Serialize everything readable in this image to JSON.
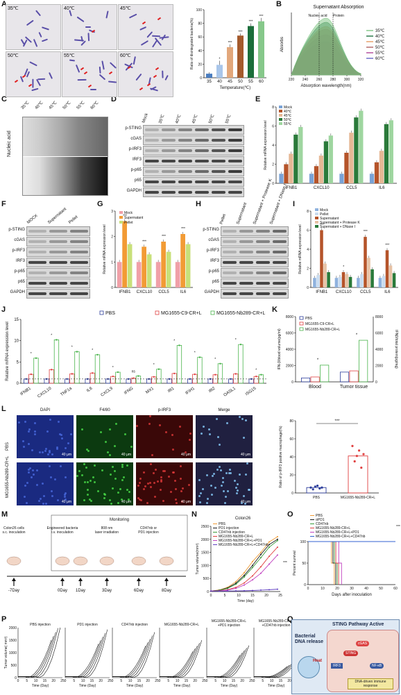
{
  "labels": {
    "A": "A",
    "B": "B",
    "C": "C",
    "D": "D",
    "E": "E",
    "F": "F",
    "G": "G",
    "H": "H",
    "I": "I",
    "J": "J",
    "K": "K",
    "L": "L",
    "M": "M",
    "N": "N",
    "O": "O",
    "P": "P",
    "Q": "Q"
  },
  "panelA": {
    "images": [
      "35℃",
      "40℃",
      "45℃",
      "50℃",
      "55℃",
      "60℃"
    ],
    "chart": {
      "type": "bar",
      "categories": [
        "35",
        "40",
        "45",
        "50",
        "55",
        "60"
      ],
      "values": [
        6,
        19,
        45,
        62,
        76,
        83
      ],
      "errors": [
        2,
        6,
        4,
        3,
        4,
        5
      ],
      "sig": [
        "",
        "*",
        "***",
        "***",
        "***",
        "***"
      ],
      "colors": [
        "#4a7dc0",
        "#a9c6ea",
        "#e2a77b",
        "#a45a2c",
        "#1b6e3a",
        "#86c88a"
      ],
      "xlabel": "Temperature(℃)",
      "ylabel": "Ratio of disintegrated bacteria(%)",
      "ylim": [
        0,
        100
      ],
      "yticks": [
        "0",
        "20",
        "40",
        "60",
        "80",
        "100"
      ]
    }
  },
  "panelB": {
    "title": "Supernatant Absorption",
    "ylabel": "Absorbs",
    "xlabel": "Absorption wavelength(nm)",
    "xticks": [
      "220",
      "240",
      "260",
      "280",
      "300",
      "320"
    ],
    "annot_nucleic": "Nucleic acid",
    "annot_protein": "Protein",
    "legend": [
      "35℃",
      "40℃",
      "45℃",
      "50℃",
      "55℃",
      "60℃"
    ],
    "colors": [
      "#86c88a",
      "#2a7a4a",
      "#e8a36c",
      "#b56b6b",
      "#b4509f",
      "#6f6fc8"
    ]
  },
  "panelC": {
    "lanes": [
      "35℃",
      "40℃",
      "45℃",
      "50℃",
      "55℃",
      "60℃"
    ],
    "ylabel": "Nucleic acid"
  },
  "panelD": {
    "lanes": [
      "Mock",
      "35℃",
      "40℃",
      "45℃",
      "50℃",
      "55℃"
    ],
    "rows": [
      "p-STING",
      "cGAS",
      "p-IRF3",
      "IRF3",
      "p-p65",
      "p65",
      "GAPDH"
    ]
  },
  "panelE": {
    "type": "bar",
    "ylabel": "Relative mRNA expression level",
    "categories": [
      "IFNB1",
      "CXCL10",
      "CCL5",
      "IL6"
    ],
    "legend": [
      "Mock",
      "40℃",
      "45℃",
      "50℃",
      "55℃"
    ],
    "colors": [
      "#7aa3d6",
      "#b5542a",
      "#e6b896",
      "#2a7a3a",
      "#9fd6a0"
    ],
    "series": [
      [
        1,
        1,
        1,
        1
      ],
      [
        2,
        1.8,
        3.2,
        2.2
      ],
      [
        3.1,
        2.9,
        5.3,
        3.4
      ],
      [
        5.1,
        4.4,
        6.9,
        6.2
      ],
      [
        5.9,
        5,
        7.6,
        6.6
      ]
    ],
    "ylim": [
      0,
      8
    ],
    "yticks": [
      "0",
      "2",
      "4",
      "6",
      "8"
    ]
  },
  "panelF": {
    "lanes": [
      "MOCK",
      "Supernatant",
      "Pellet"
    ],
    "rows": [
      "p-STING",
      "cGAS",
      "p-IRF3",
      "IRF3",
      "p-p65",
      "p65",
      "GAPDH"
    ]
  },
  "panelG": {
    "type": "bar",
    "ylabel": "Relative mRNA expression level",
    "categories": [
      "IFNB1",
      "CXCL10",
      "CCL5",
      "IL6"
    ],
    "legend": [
      "Mock",
      "Supernatant",
      "Pellet"
    ],
    "colors": [
      "#f0a0a8",
      "#f29b35",
      "#c8e07a"
    ],
    "series": [
      [
        1,
        1,
        1,
        1
      ],
      [
        2.6,
        1.6,
        1.8,
        2.1
      ],
      [
        1.7,
        1.3,
        1.4,
        1.7
      ]
    ],
    "ylim": [
      0,
      3
    ],
    "yticks": [
      "0",
      "1",
      "2",
      "3"
    ],
    "sig": [
      "***",
      "***",
      "***",
      "***"
    ]
  },
  "panelH": {
    "lanes": [
      "Pellet",
      "Supernatant",
      "Supernatant + Protease K",
      "Supernatant + DNase I"
    ],
    "rows": [
      "p-STING",
      "cGAS",
      "p-IRF3",
      "IRF3",
      "p-p65",
      "p65",
      "GAPDH"
    ]
  },
  "panelI": {
    "type": "bar",
    "ylabel": "Relative mRNA expression level",
    "categories": [
      "IFNB1",
      "CXCL10",
      "CCL5",
      "IL6"
    ],
    "legend": [
      "Mock",
      "Pellet",
      "Supernatant",
      "Supernatant + Protease K",
      "Supernatant + DNase I"
    ],
    "colors": [
      "#8fb2de",
      "#c9dcf0",
      "#b5542a",
      "#e7c3a6",
      "#2a7a3a"
    ],
    "series": [
      [
        1,
        1,
        1,
        1
      ],
      [
        1.3,
        1.1,
        1.4,
        1.2
      ],
      [
        6,
        1.6,
        5.3,
        3.9
      ],
      [
        2.5,
        1.4,
        3.1,
        2.3
      ],
      [
        1.6,
        1.1,
        1.9,
        1.5
      ]
    ],
    "ylim": [
      0,
      8
    ],
    "yticks": [
      "0",
      "2",
      "4",
      "6",
      "8"
    ],
    "sig": [
      "***",
      "*",
      "***",
      "***"
    ]
  },
  "panelJ": {
    "type": "bar",
    "ylabel": "Relative mRNA expression level",
    "legend": [
      "PBS",
      "MG1655-C9-CR+L",
      "MG1655-Nb289-CR+L"
    ],
    "colors": [
      "#2d3e9c",
      "#e04040",
      "#48b34a"
    ],
    "categories": [
      "IFNB1",
      "CXCL10",
      "TNF1a",
      "IL6",
      "CXCL9",
      "IFNG",
      "MX1",
      "Ifit1",
      "IFIH1",
      "Ifit2",
      "OASL1",
      "ISG15"
    ],
    "series": [
      [
        1,
        1,
        1,
        1,
        1,
        1,
        1,
        1,
        1,
        1,
        1,
        1
      ],
      [
        2.1,
        3.2,
        2.2,
        2.4,
        1.6,
        1.2,
        1.5,
        2.3,
        2.1,
        2,
        2.2,
        1.6
      ],
      [
        5.9,
        10.2,
        7.4,
        6.7,
        2.6,
        1.7,
        3.3,
        8.9,
        6.1,
        4.6,
        9.1,
        2
      ]
    ],
    "sig": [
      "*",
      "*",
      "*",
      "*",
      "*",
      "ns",
      "*",
      "*",
      "*",
      "*",
      "*",
      "*"
    ],
    "ylim": [
      0,
      15
    ],
    "yticks": [
      "0",
      "5",
      "10",
      "15"
    ]
  },
  "panelK": {
    "legend": [
      "PBS",
      "MG1655-C9-CR+L",
      "MG1655-Nb289-CR+L"
    ],
    "colors": [
      "#2d3e9c",
      "#e04040",
      "#48b34a"
    ],
    "ylabel_left": "IFN-β/blood volume(pg/ml)",
    "ylabel_right": "IFNβ/total protein(pg/mg)",
    "categories": [
      "Blood",
      "Tumor tissue"
    ],
    "series": [
      [
        480,
        1200
      ],
      [
        600,
        1350
      ],
      [
        2050,
        5100
      ]
    ],
    "ylim": [
      0,
      8000
    ],
    "yticks": [
      "0",
      "2000",
      "4000",
      "6000",
      "8000"
    ],
    "sig": [
      "*",
      "*"
    ]
  },
  "panelL": {
    "columns": [
      "DAPI",
      "F4/80",
      "p-IRF3",
      "Merge"
    ],
    "rows": [
      "PBS",
      "MG1655-Nb289-CR+L"
    ],
    "scale": "40 μm",
    "chart": {
      "type": "scatter",
      "categories": [
        "PBS",
        "MG1655-Nb289-CR+L"
      ],
      "values": [
        [
          6,
          4,
          7,
          8,
          5,
          6
        ],
        [
          52,
          35,
          41,
          47,
          28,
          43
        ]
      ],
      "means": [
        6,
        41
      ],
      "ylabel": "Ratio of p-IRF3 positive macrophage(%)",
      "ylim": [
        0,
        80
      ],
      "yticks": [
        "0",
        "20",
        "40",
        "60",
        "80"
      ],
      "sig": "***"
    }
  },
  "panelM": {
    "steps": [
      "Colon26 cells s.c. inoculation",
      "Engineered bacteria i.v. inoculation",
      "808 nm laser irradiation",
      "CD47nb or PD1 injection"
    ],
    "monitoring": "Monitoring",
    "days": [
      "-7Day",
      "0Day",
      "1Day",
      "3Day",
      "6Day",
      "8Day"
    ]
  },
  "panelN": {
    "title": "Colon26",
    "type": "line",
    "legend": [
      "PBS",
      "PD1 injection",
      "CD47nb injection",
      "MG1655-Nb289-CR+L",
      "MG1655-Nb289-CR+L+PD1",
      "MG1655-Nb289-CR+L+CD47nb"
    ],
    "colors": [
      "#f29b35",
      "#1a1a1a",
      "#3a9a3a",
      "#e04040",
      "#c040c0",
      "#6040c0"
    ],
    "x": [
      0,
      3,
      6,
      9,
      12,
      15,
      18,
      21,
      24
    ],
    "series": [
      [
        20,
        60,
        160,
        380,
        720,
        1150,
        1500,
        1900,
        2100
      ],
      [
        20,
        50,
        140,
        320,
        620,
        1000,
        1420,
        1800,
        2000
      ],
      [
        20,
        45,
        120,
        280,
        560,
        920,
        1300,
        1700,
        1950
      ],
      [
        20,
        30,
        70,
        160,
        330,
        600,
        950,
        1350,
        1700
      ],
      [
        20,
        25,
        55,
        120,
        250,
        450,
        700,
        1050,
        1400
      ],
      [
        20,
        18,
        20,
        25,
        30,
        40,
        55,
        70,
        90
      ]
    ],
    "ylabel": "Tumor volume(mm³)",
    "xlabel": "Time (day)",
    "yticks": [
      "0",
      "500",
      "1000",
      "1500",
      "2000",
      "2500"
    ],
    "xticks": [
      "0",
      "5",
      "10",
      "15",
      "20",
      "25"
    ],
    "sig": "***"
  },
  "panelO": {
    "type": "line",
    "legend": [
      "PBS",
      "αPD1",
      "CD47nb",
      "MG1655-Nb289-CR+L",
      "MG1655-Nb289-CR+L+PD1",
      "MG1655-Nb289-CR+L+CD47nb"
    ],
    "colors": [
      "#f29b35",
      "#1a1a1a",
      "#3a9a3a",
      "#e04040",
      "#c040c0",
      "#3060d0"
    ],
    "ylabel": "Percent survival",
    "xlabel": "Days after inoculation",
    "xticks": [
      "0",
      "10",
      "20",
      "30",
      "40",
      "50",
      "60"
    ],
    "yticks": [
      "0",
      "50",
      "100"
    ],
    "sig": "***"
  },
  "panelP": {
    "titles": [
      "PBS injection",
      "PD1 injection",
      "CD47nb injection",
      "MG1655-Nb289-CR+L",
      "MG1655-Nb289-CR+L +PD1 injection",
      "MG1655-Nb289-CR+L +CD47nb injection"
    ],
    "ylabel": "Tumor volume( mm³)",
    "xlabel": "Time (Day)",
    "xticks": [
      "0",
      "5",
      "10",
      "15",
      "20",
      "25"
    ],
    "yticks": [
      "0",
      "500",
      "1000",
      "1500",
      "2000"
    ]
  },
  "panelQ": {
    "title": "STING Pathway Active",
    "left": "Bacterial DNA release",
    "heat": "Heat",
    "nodes": [
      "cGAS",
      "STING",
      "IRF3",
      "NF-κB",
      "DNA-driven immune response"
    ]
  }
}
